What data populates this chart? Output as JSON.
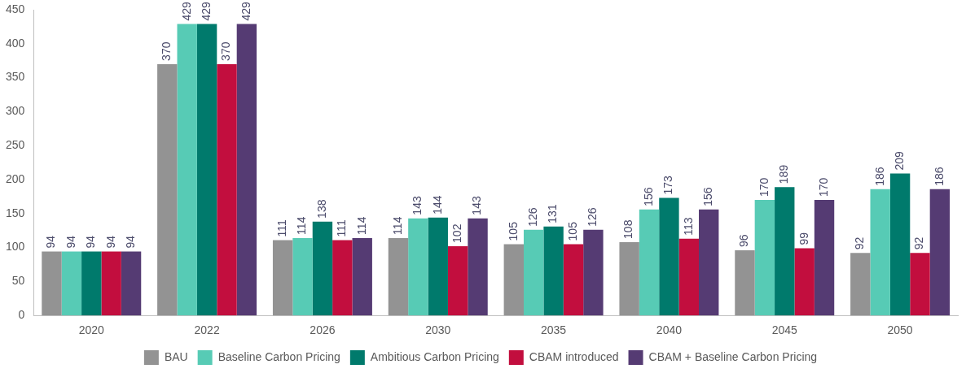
{
  "chart_data": {
    "type": "bar",
    "categories": [
      "2020",
      "2022",
      "2026",
      "2030",
      "2035",
      "2040",
      "2045",
      "2050"
    ],
    "series": [
      {
        "name": "BAU",
        "color": "#939393",
        "values": [
          94,
          370,
          111,
          114,
          105,
          108,
          96,
          92
        ]
      },
      {
        "name": "Baseline Carbon Pricing",
        "color": "#57cbb5",
        "values": [
          94,
          429,
          114,
          143,
          126,
          156,
          170,
          186
        ]
      },
      {
        "name": "Ambitious Carbon Pricing",
        "color": "#007a6c",
        "values": [
          94,
          429,
          138,
          144,
          131,
          173,
          189,
          209
        ]
      },
      {
        "name": "CBAM introduced",
        "color": "#c20e3e",
        "values": [
          94,
          370,
          111,
          102,
          105,
          113,
          99,
          92
        ]
      },
      {
        "name": "CBAM + Baseline Carbon Pricing",
        "color": "#553b73",
        "values": [
          94,
          429,
          114,
          143,
          126,
          156,
          170,
          186
        ]
      }
    ],
    "ylim": [
      0,
      450
    ],
    "yticks": [
      0,
      50,
      100,
      150,
      200,
      250,
      300,
      350,
      400,
      450
    ],
    "grid": false,
    "legend": "bottom",
    "data_labels": true
  }
}
